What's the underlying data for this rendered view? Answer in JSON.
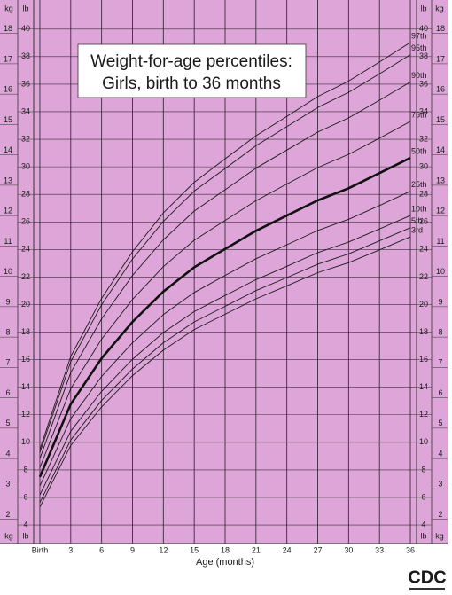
{
  "chart_data": {
    "type": "line",
    "title_lines": [
      "Weight-for-age percentiles:",
      "Girls, birth to 36 months"
    ],
    "x_label": "Age (months)",
    "y_unit": "kg",
    "y2_unit": "lb",
    "logo": "CDC",
    "x": [
      0,
      3,
      6,
      9,
      12,
      15,
      18,
      21,
      24,
      27,
      30,
      33,
      36
    ],
    "xlim": [
      -0.6,
      36.6
    ],
    "xticks": [
      {
        "value": 0,
        "label": "Birth"
      },
      3,
      6,
      9,
      12,
      15,
      18,
      21,
      24,
      27,
      30,
      33,
      36
    ],
    "ylim": [
      1.2,
      19.1
    ],
    "yticks": [
      2,
      3,
      4,
      5,
      6,
      7,
      8,
      9,
      10,
      11,
      12,
      13,
      14,
      15,
      16,
      17,
      18
    ],
    "y2lim": [
      2.65,
      42.11
    ],
    "y2ticks": [
      4,
      6,
      8,
      10,
      12,
      14,
      16,
      18,
      20,
      22,
      24,
      26,
      28,
      30,
      32,
      34,
      36,
      38,
      40
    ],
    "grid": true,
    "background": "#dea6d8",
    "series": [
      {
        "name": "3rd",
        "color": "#1a1a1a",
        "width": 0.9,
        "values": [
          2.4,
          4.43,
          5.7,
          6.73,
          7.57,
          8.25,
          8.75,
          9.26,
          9.69,
          10.12,
          10.45,
          10.87,
          11.3
        ]
      },
      {
        "name": "5th",
        "color": "#1a1a1a",
        "width": 0.9,
        "values": [
          2.55,
          4.61,
          5.91,
          6.95,
          7.81,
          8.5,
          9.01,
          9.53,
          9.96,
          10.4,
          10.74,
          11.17,
          11.6
        ]
      },
      {
        "name": "10th",
        "color": "#1a1a1a",
        "width": 0.9,
        "values": [
          2.8,
          4.9,
          6.21,
          7.27,
          8.15,
          8.84,
          9.37,
          9.89,
          10.33,
          10.78,
          11.13,
          11.56,
          12.0
        ]
      },
      {
        "name": "25th",
        "color": "#1a1a1a",
        "width": 0.9,
        "values": [
          3.1,
          5.31,
          6.7,
          7.81,
          8.74,
          9.47,
          10.03,
          10.58,
          11.04,
          11.51,
          11.88,
          12.33,
          12.8
        ]
      },
      {
        "name": "50th",
        "color": "#111111",
        "width": 2.6,
        "values": [
          3.4,
          5.79,
          7.3,
          8.5,
          9.5,
          10.3,
          10.9,
          11.5,
          12.0,
          12.5,
          12.9,
          13.4,
          13.9
        ]
      },
      {
        "name": "75th",
        "color": "#1a1a1a",
        "width": 0.9,
        "values": [
          3.7,
          6.3,
          7.93,
          9.24,
          10.32,
          11.19,
          11.84,
          12.49,
          13.04,
          13.58,
          14.02,
          14.55,
          15.1
        ]
      },
      {
        "name": "90th",
        "color": "#1a1a1a",
        "width": 0.9,
        "values": [
          4.0,
          6.83,
          8.6,
          10.03,
          11.2,
          12.15,
          12.85,
          13.56,
          14.16,
          14.75,
          15.22,
          15.8,
          16.4
        ]
      },
      {
        "name": "95th",
        "color": "#1a1a1a",
        "width": 0.9,
        "values": [
          4.2,
          7.19,
          9.06,
          10.57,
          11.81,
          12.81,
          13.55,
          14.3,
          14.93,
          15.56,
          16.06,
          16.67,
          17.3
        ]
      },
      {
        "name": "97th",
        "color": "#1a1a1a",
        "width": 0.9,
        "values": [
          4.3,
          7.36,
          9.27,
          10.81,
          12.09,
          13.1,
          13.87,
          14.63,
          15.27,
          15.92,
          16.43,
          17.06,
          17.7
        ]
      }
    ]
  }
}
